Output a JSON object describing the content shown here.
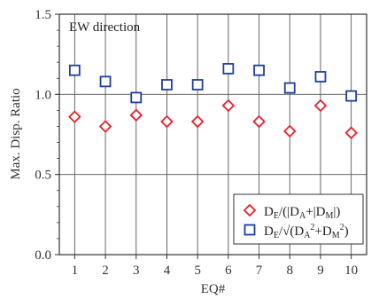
{
  "chart_data": {
    "type": "scatter",
    "annotation": "EW direction",
    "xlabel": "EQ#",
    "ylabel": "Max. Disp. Ratio",
    "x": [
      1,
      2,
      3,
      4,
      5,
      6,
      7,
      8,
      9,
      10
    ],
    "xlim": [
      0.5,
      10.5
    ],
    "xticks": [
      "1",
      "2",
      "3",
      "4",
      "5",
      "6",
      "7",
      "8",
      "9",
      "10"
    ],
    "ylim": [
      0.0,
      1.5
    ],
    "yticks": [
      "0.0",
      "0.5",
      "1.0",
      "1.5"
    ],
    "grid": true,
    "legend_position": "bottom-right",
    "series": [
      {
        "name": "DE/(|DA|+|DM|)",
        "marker": "diamond",
        "color": "#e8202a",
        "values": [
          0.86,
          0.8,
          0.87,
          0.83,
          0.83,
          0.93,
          0.83,
          0.77,
          0.93,
          0.76
        ]
      },
      {
        "name": "DE/√(DA2+DM2)",
        "marker": "square",
        "color": "#1f3e9e",
        "values": [
          1.15,
          1.08,
          0.98,
          1.06,
          1.06,
          1.16,
          1.15,
          1.04,
          1.11,
          0.99
        ]
      }
    ]
  }
}
